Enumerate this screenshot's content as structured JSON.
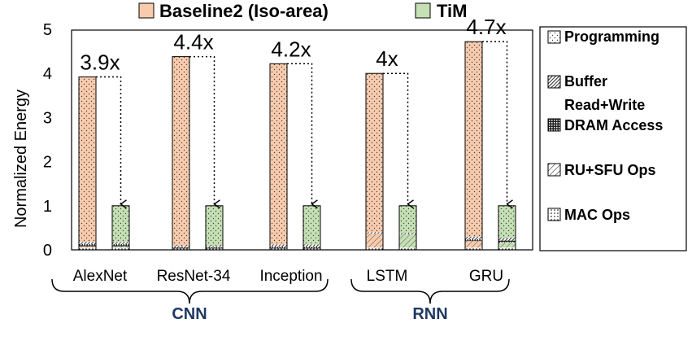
{
  "chart_data": {
    "type": "bar",
    "ylabel": "Normalized Energy",
    "ylim": [
      0,
      5
    ],
    "yticks": [
      "0",
      "1",
      "2",
      "3",
      "4",
      "5"
    ],
    "categories": [
      "AlexNet",
      "ResNet-34",
      "Inception",
      "LSTM",
      "GRU"
    ],
    "groups": [
      {
        "label": "CNN",
        "members": [
          "AlexNet",
          "ResNet-34",
          "Inception"
        ]
      },
      {
        "label": "RNN",
        "members": [
          "LSTM",
          "GRU"
        ]
      }
    ],
    "series": [
      {
        "name": "Baseline2 (Iso-area)",
        "color": "#f8cbad",
        "totals": [
          3.92,
          4.38,
          4.22,
          4.0,
          4.72
        ],
        "stack": {
          "MAC Ops": [
            0.05,
            0.03,
            0.03,
            0.05,
            0.05
          ],
          "RU+SFU Ops": [
            0.03,
            0.0,
            0.0,
            0.32,
            0.15
          ],
          "DRAM Access": [
            0.05,
            0.03,
            0.04,
            0.0,
            0.04
          ],
          "Buffer Read+Write": [
            0.05,
            0.03,
            0.05,
            0.03,
            0.06
          ],
          "Programming": [
            3.74,
            4.29,
            4.1,
            3.6,
            4.42
          ]
        }
      },
      {
        "name": "TiM",
        "color": "#c5e0b4",
        "totals": [
          1.0,
          1.0,
          1.0,
          1.0,
          1.0
        ],
        "stack": {
          "MAC Ops": [
            0.05,
            0.03,
            0.03,
            0.05,
            0.05
          ],
          "RU+SFU Ops": [
            0.03,
            0.0,
            0.0,
            0.3,
            0.12
          ],
          "DRAM Access": [
            0.05,
            0.03,
            0.04,
            0.0,
            0.04
          ],
          "Buffer Read+Write": [
            0.05,
            0.03,
            0.05,
            0.03,
            0.06
          ],
          "Programming": [
            0.82,
            0.91,
            0.88,
            0.62,
            0.73
          ]
        }
      }
    ],
    "annotations": [
      "3.9x",
      "4.4x",
      "4.2x",
      "4x",
      "4.7x"
    ],
    "components": [
      "Programming",
      "Buffer Read+Write",
      "DRAM Access",
      "RU+SFU Ops",
      "MAC Ops"
    ],
    "legend_position": "top",
    "component_legend_position": "right",
    "grid": false
  },
  "legend": {
    "baseline_label": "Baseline2 (Iso-area)",
    "tim_label": "TiM"
  },
  "component_legend": {
    "programming": "Programming",
    "buffer_line1": "Buffer",
    "buffer_line2": "Read+Write",
    "dram": "DRAM Access",
    "rusfu": "RU+SFU Ops",
    "mac": "MAC Ops"
  }
}
